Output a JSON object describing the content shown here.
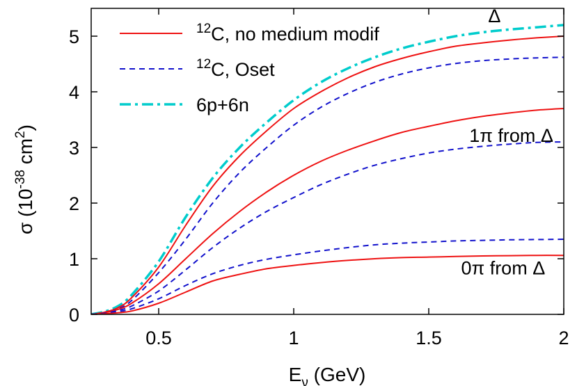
{
  "chart_data": {
    "type": "line",
    "xlabel": "E_ν (GeV)",
    "xlabel_main": "E",
    "xlabel_sub": "ν",
    "xlabel_rest": " (GeV)",
    "ylabel": "σ (10^-38 cm^2)",
    "ylabel_main": "σ (10",
    "ylabel_exp1": "-38",
    "ylabel_mid": " cm",
    "ylabel_exp2": "2",
    "ylabel_end": ")",
    "xlim": [
      0.25,
      2.0
    ],
    "ylim": [
      0,
      5.5
    ],
    "xticks": [
      0.5,
      1,
      1.5,
      2
    ],
    "xtick_labels": [
      "0.5",
      "1",
      "1.5",
      "2"
    ],
    "yticks": [
      0,
      1,
      2,
      3,
      4,
      5
    ],
    "ytick_labels": [
      "0",
      "1",
      "2",
      "3",
      "4",
      "5"
    ],
    "grid": false,
    "legend_placement": "top-left",
    "legend": [
      {
        "sup": "12",
        "text": "C, no medium modif",
        "color": "#ee1111",
        "style": "solid"
      },
      {
        "sup": "12",
        "text": "C,  Oset",
        "color": "#1111cc",
        "style": "dashed"
      },
      {
        "sup": "",
        "text": "6p+6n",
        "color": "#00cccc",
        "style": "dashdot"
      }
    ],
    "annotations": [
      {
        "text": "Δ",
        "x": 1.72,
        "y": 5.25
      },
      {
        "text": "1π from Δ",
        "x": 1.65,
        "y": 3.1
      },
      {
        "text": "0π from Δ",
        "x": 1.62,
        "y": 0.72
      }
    ],
    "series": [
      {
        "group": "Δ",
        "color": "#00cccc",
        "style": "dashdot",
        "width": 3.5,
        "x": [
          0.25,
          0.3,
          0.35,
          0.4,
          0.5,
          0.6,
          0.7,
          0.8,
          0.9,
          1.0,
          1.1,
          1.2,
          1.3,
          1.4,
          1.5,
          1.6,
          1.7,
          1.8,
          1.9,
          2.0
        ],
        "y": [
          0,
          0.05,
          0.15,
          0.35,
          0.95,
          1.75,
          2.45,
          3.0,
          3.45,
          3.85,
          4.17,
          4.42,
          4.62,
          4.78,
          4.9,
          5.0,
          5.07,
          5.12,
          5.16,
          5.2
        ]
      },
      {
        "group": "Δ",
        "color": "#ee1111",
        "style": "solid",
        "width": 2,
        "x": [
          0.25,
          0.3,
          0.35,
          0.4,
          0.5,
          0.6,
          0.7,
          0.8,
          0.9,
          1.0,
          1.1,
          1.2,
          1.3,
          1.4,
          1.5,
          1.6,
          1.7,
          1.8,
          1.9,
          2.0
        ],
        "y": [
          0,
          0.04,
          0.12,
          0.3,
          0.85,
          1.6,
          2.3,
          2.85,
          3.3,
          3.7,
          4.0,
          4.25,
          4.45,
          4.6,
          4.72,
          4.82,
          4.88,
          4.93,
          4.97,
          5.0
        ]
      },
      {
        "group": "Δ",
        "color": "#1111cc",
        "style": "dashed",
        "width": 2,
        "x": [
          0.25,
          0.3,
          0.35,
          0.4,
          0.5,
          0.6,
          0.7,
          0.8,
          0.9,
          1.0,
          1.1,
          1.2,
          1.3,
          1.4,
          1.5,
          1.6,
          1.7,
          1.8,
          1.9,
          2.0
        ],
        "y": [
          0,
          0.03,
          0.1,
          0.25,
          0.75,
          1.35,
          2.0,
          2.55,
          3.0,
          3.4,
          3.72,
          3.97,
          4.17,
          4.32,
          4.43,
          4.51,
          4.56,
          4.59,
          4.61,
          4.62
        ]
      },
      {
        "group": "1π from Δ",
        "color": "#ee1111",
        "style": "solid",
        "width": 2,
        "x": [
          0.25,
          0.3,
          0.35,
          0.4,
          0.5,
          0.6,
          0.7,
          0.8,
          0.9,
          1.0,
          1.1,
          1.2,
          1.3,
          1.4,
          1.5,
          1.6,
          1.7,
          1.8,
          1.9,
          2.0
        ],
        "y": [
          0,
          0.03,
          0.09,
          0.2,
          0.55,
          1.0,
          1.45,
          1.85,
          2.2,
          2.5,
          2.75,
          2.95,
          3.12,
          3.27,
          3.38,
          3.48,
          3.56,
          3.62,
          3.67,
          3.7
        ]
      },
      {
        "group": "1π from Δ",
        "color": "#1111cc",
        "style": "dashed",
        "width": 2,
        "x": [
          0.25,
          0.3,
          0.35,
          0.4,
          0.5,
          0.6,
          0.7,
          0.8,
          0.9,
          1.0,
          1.1,
          1.2,
          1.3,
          1.4,
          1.5,
          1.6,
          1.7,
          1.8,
          1.9,
          2.0
        ],
        "y": [
          0,
          0.02,
          0.07,
          0.15,
          0.42,
          0.8,
          1.2,
          1.55,
          1.85,
          2.1,
          2.33,
          2.52,
          2.68,
          2.8,
          2.9,
          2.97,
          3.02,
          3.06,
          3.09,
          3.1
        ]
      },
      {
        "group": "0π from Δ",
        "color": "#1111cc",
        "style": "dashed",
        "width": 2,
        "x": [
          0.25,
          0.3,
          0.35,
          0.4,
          0.5,
          0.6,
          0.7,
          0.8,
          0.9,
          1.0,
          1.1,
          1.2,
          1.3,
          1.4,
          1.5,
          1.6,
          1.7,
          1.8,
          1.9,
          2.0
        ],
        "y": [
          0,
          0.015,
          0.05,
          0.1,
          0.28,
          0.52,
          0.73,
          0.88,
          0.99,
          1.07,
          1.14,
          1.2,
          1.25,
          1.28,
          1.3,
          1.32,
          1.33,
          1.34,
          1.345,
          1.35
        ]
      },
      {
        "group": "0π from Δ",
        "color": "#ee1111",
        "style": "solid",
        "width": 2,
        "x": [
          0.25,
          0.3,
          0.35,
          0.4,
          0.5,
          0.6,
          0.7,
          0.8,
          0.9,
          1.0,
          1.1,
          1.2,
          1.3,
          1.4,
          1.5,
          1.6,
          1.7,
          1.8,
          1.9,
          2.0
        ],
        "y": [
          0,
          0.01,
          0.03,
          0.06,
          0.2,
          0.4,
          0.6,
          0.72,
          0.82,
          0.88,
          0.93,
          0.97,
          1.0,
          1.02,
          1.03,
          1.04,
          1.05,
          1.055,
          1.06,
          1.06
        ]
      }
    ]
  }
}
